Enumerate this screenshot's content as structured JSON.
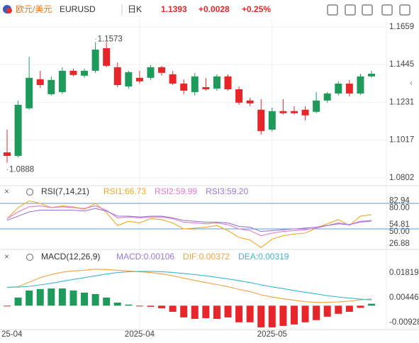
{
  "header": {
    "name": "欧元/美元",
    "symbol": "EURUSD",
    "period": "日K",
    "price": "1.1393",
    "change": "+0.0028",
    "change_pct": "+0.25%"
  },
  "chart_data": [
    {
      "type": "candlestick",
      "categories": [
        "25-04",
        null,
        null,
        null,
        null,
        null,
        null,
        null,
        null,
        null,
        null,
        null,
        "2025-04",
        null,
        null,
        null,
        null,
        null,
        null,
        null,
        null,
        null,
        null,
        null,
        "2025-05",
        null,
        null,
        null,
        null,
        null,
        null,
        null,
        null,
        null
      ],
      "open": [
        1.0947,
        1.0927,
        1.1197,
        1.1362,
        1.1277,
        1.1289,
        1.141,
        1.1382,
        1.141,
        1.1538,
        1.143,
        1.1321,
        1.137,
        1.137,
        1.143,
        1.139,
        1.1337,
        1.1289,
        1.1317,
        1.1309,
        1.1378,
        1.1305,
        1.1241,
        1.1189,
        1.1076,
        1.1181,
        1.1181,
        1.1189,
        1.1177,
        1.1241,
        1.1281,
        1.1337,
        1.1281,
        1.1378
      ],
      "high": [
        1.1076,
        1.1241,
        1.149,
        1.141,
        1.1378,
        1.143,
        1.1422,
        1.1422,
        1.1573,
        1.1571,
        1.1458,
        1.141,
        1.141,
        1.1442,
        1.1438,
        1.141,
        1.1362,
        1.1398,
        1.137,
        1.139,
        1.139,
        1.1321,
        1.1257,
        1.1249,
        1.1201,
        1.1249,
        1.1209,
        1.1209,
        1.1289,
        1.1289,
        1.135,
        1.1358,
        1.1394,
        1.141
      ],
      "low": [
        1.0888,
        1.0919,
        1.1189,
        1.1313,
        1.1269,
        1.1277,
        1.1378,
        1.137,
        1.1398,
        1.143,
        1.1317,
        1.1309,
        1.1337,
        1.1358,
        1.1382,
        1.1329,
        1.1277,
        1.1269,
        1.1297,
        1.1297,
        1.1297,
        1.1217,
        1.1209,
        1.1048,
        1.1064,
        1.1161,
        1.1161,
        1.1128,
        1.1169,
        1.1229,
        1.1269,
        1.1265,
        1.1273,
        1.137
      ],
      "close": [
        1.0927,
        1.1217,
        1.137,
        1.1329,
        1.1358,
        1.141,
        1.1386,
        1.141,
        1.153,
        1.1438,
        1.1329,
        1.1402,
        1.135,
        1.143,
        1.1398,
        1.1337,
        1.1297,
        1.1378,
        1.1305,
        1.1378,
        1.1305,
        1.1229,
        1.1225,
        1.1068,
        1.1181,
        1.1169,
        1.1169,
        1.1157,
        1.1241,
        1.1281,
        1.1337,
        1.1281,
        1.1378,
        1.1393
      ],
      "up_color": "#1e9b5a",
      "down_color": "#e8262a",
      "ylim": [
        1.0758,
        1.1723
      ],
      "yticks": [
        1.1659,
        1.1445,
        1.1231,
        1.1017,
        1.0802
      ],
      "annotations": [
        {
          "text": "1.1573"
        },
        {
          "text": "1.0888"
        }
      ]
    },
    {
      "type": "line",
      "title": "RSI(7,14,21)",
      "series": [
        {
          "name": "RSI1:66.73",
          "color": "#f5a623",
          "values": [
            62,
            75,
            83,
            80,
            75,
            77,
            76,
            73,
            80,
            69,
            54,
            59,
            57,
            62,
            61,
            57,
            50,
            51,
            52,
            54,
            48,
            40,
            37,
            28,
            38,
            42,
            44,
            45,
            51,
            56,
            61,
            54,
            65,
            66.73
          ]
        },
        {
          "name": "RSI2:59.99",
          "color": "#e27ac8",
          "values": [
            62,
            70,
            76,
            77,
            75,
            76,
            75,
            74,
            77,
            72,
            63,
            64,
            63,
            64,
            64,
            62,
            58,
            57,
            56,
            57,
            55,
            50,
            48,
            42,
            45,
            47,
            48,
            49,
            51,
            54,
            57,
            55,
            59,
            59.99
          ]
        },
        {
          "name": "RSI3:59.20",
          "color": "#9a78d8",
          "values": [
            60,
            65,
            70,
            72,
            72,
            72,
            72,
            71,
            74,
            71,
            65,
            65,
            64,
            65,
            65,
            63,
            60,
            59,
            58,
            58,
            57,
            53,
            52,
            47,
            48,
            49,
            50,
            51,
            52,
            54,
            56,
            55,
            58,
            59.2
          ]
        }
      ],
      "ylim": [
        25.8,
        87.5
      ],
      "yticks": [
        {
          "value": 80,
          "label": "80.00"
        },
        82.94,
        54.81,
        {
          "value": 50,
          "label": "50.00"
        },
        26.88
      ],
      "reference_lines": [
        80,
        50
      ],
      "reference_color": "#5b9bd5"
    },
    {
      "type": "macd",
      "title": "MACD(12,26,9)",
      "histogram": {
        "name": "MACD:0.00106",
        "up_color": "#1e9b5a",
        "down_color": "#e8262a",
        "values": [
          -0.0004,
          0.0045,
          0.0084,
          0.0092,
          0.0095,
          0.0095,
          0.0084,
          0.0072,
          0.0064,
          0.0045,
          0.0017,
          0.0006,
          -0.0002,
          -0.0006,
          -0.0014,
          -0.0034,
          -0.0065,
          -0.0073,
          -0.0069,
          -0.0073,
          -0.0065,
          -0.0092,
          -0.0092,
          -0.012,
          -0.012,
          -0.0112,
          -0.0104,
          -0.0092,
          -0.008,
          -0.0061,
          -0.0045,
          -0.0034,
          -0.0012,
          0.00106
        ]
      },
      "series": [
        {
          "name": "DIF:0.00372",
          "color": "#f5a040",
          "values": [
            0.01,
            0.0105,
            0.013,
            0.0155,
            0.0172,
            0.0185,
            0.0192,
            0.0196,
            0.0202,
            0.02,
            0.0196,
            0.0192,
            0.0188,
            0.0183,
            0.0176,
            0.0166,
            0.0152,
            0.014,
            0.0128,
            0.0117,
            0.0105,
            0.009,
            0.0078,
            0.006,
            0.0048,
            0.0038,
            0.003,
            0.0022,
            0.0018,
            0.0018,
            0.0021,
            0.0025,
            0.0032,
            0.00372
          ]
        },
        {
          "name": "DEA:0.00319",
          "color": "#3db6d3",
          "values": [
            0.0102,
            0.0103,
            0.0107,
            0.0115,
            0.0124,
            0.0135,
            0.0145,
            0.0155,
            0.0165,
            0.0175,
            0.0183,
            0.0188,
            0.019,
            0.019,
            0.0188,
            0.0184,
            0.0178,
            0.0172,
            0.0165,
            0.0157,
            0.0148,
            0.0138,
            0.0128,
            0.0115,
            0.0104,
            0.0094,
            0.0084,
            0.0074,
            0.0065,
            0.0055,
            0.0048,
            0.0042,
            0.0036,
            0.00319
          ]
        }
      ],
      "ylim": [
        -0.0132,
        0.026
      ],
      "yticks": [
        0.01819,
        0.00446,
        -0.00928
      ]
    }
  ]
}
